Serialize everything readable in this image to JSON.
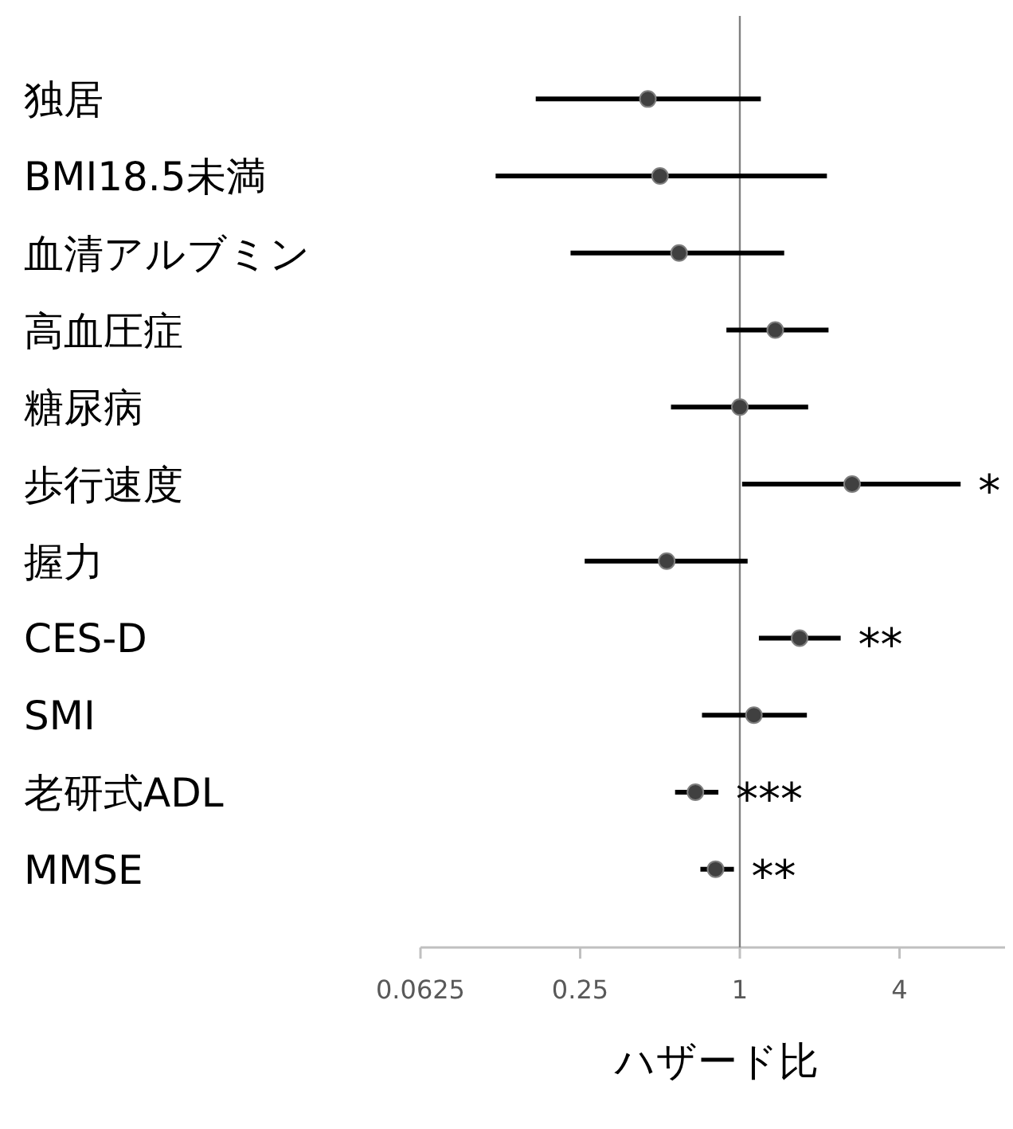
{
  "chart_data": {
    "type": "scatter",
    "orientation": "horizontal",
    "xlabel": "ハザード比",
    "categories": [
      "独居",
      "BMI18.5未満",
      "血清アルブミン",
      "高血圧症",
      "糖尿病",
      "歩行速度",
      "握力",
      "CES-D",
      "SMI",
      "老研式ADL",
      "MMSE"
    ],
    "values": [
      0.45,
      0.5,
      0.59,
      1.36,
      1.0,
      2.65,
      0.53,
      1.68,
      1.13,
      0.68,
      0.81
    ],
    "errors": [
      [
        0.17,
        1.2
      ],
      [
        0.12,
        2.13
      ],
      [
        0.23,
        1.47
      ],
      [
        0.89,
        2.16
      ],
      [
        0.55,
        1.81
      ],
      [
        1.02,
        6.8
      ],
      [
        0.26,
        1.07
      ],
      [
        1.18,
        2.4
      ],
      [
        0.72,
        1.79
      ],
      [
        0.57,
        0.83
      ],
      [
        0.71,
        0.95
      ]
    ],
    "value_labels": [
      null,
      null,
      null,
      null,
      null,
      "*",
      null,
      "**",
      null,
      "***",
      "**"
    ],
    "color": "#404040",
    "marker": "circle",
    "log": "x",
    "xlim": [
      0.0625,
      10
    ],
    "xticks": [
      0.0625,
      0.25,
      1,
      4
    ],
    "ref_lines": [
      {
        "axis": "x",
        "value": 1,
        "color": "#808080"
      }
    ]
  }
}
